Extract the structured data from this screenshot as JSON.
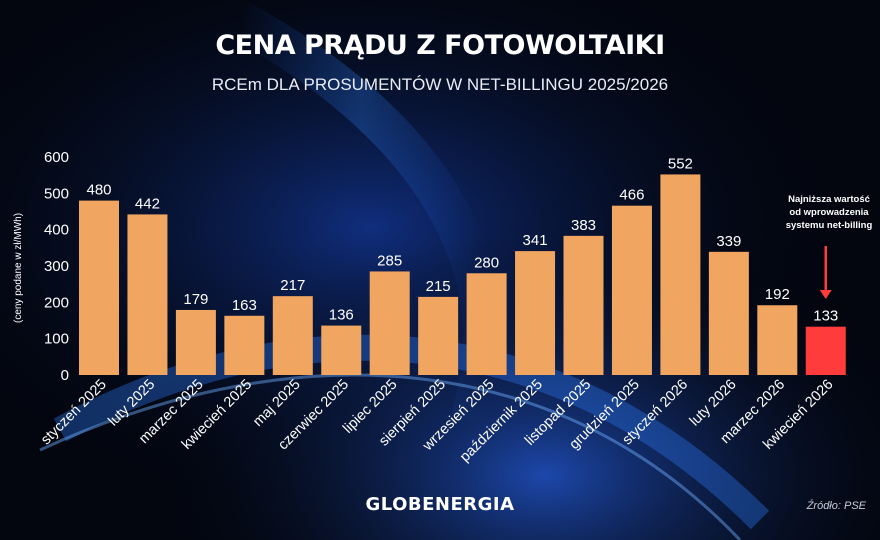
{
  "title": "CENA PRĄDU Z FOTOWOLTAIKI",
  "subtitle": "RCEm DLA PROSUMENTÓW W NET-BILLINGU 2025/2026",
  "brand": "GLOBENERGIA",
  "source": "Źródło: PSE",
  "colors": {
    "background": "#03060f",
    "bar": "#f0a560",
    "highlight_bar": "#ff3b3b",
    "text": "#ffffff"
  },
  "chart_data": {
    "type": "bar",
    "title": "CENA PRĄDU Z FOTOWOLTAIKI",
    "subtitle": "RCEm DLA PROSUMENTÓW W NET-BILLINGU 2025/2026",
    "xlabel": "",
    "ylabel": "(ceny podane w zł/MWh)",
    "ylim": [
      0,
      600
    ],
    "yticks": [
      0,
      100,
      200,
      300,
      400,
      500,
      600
    ],
    "grid": false,
    "categories": [
      "styczeń 2025",
      "luty 2025",
      "marzec 2025",
      "kwiecień 2025",
      "maj 2025",
      "czerwiec 2025",
      "lipiec 2025",
      "sierpień 2025",
      "wrzesień 2025",
      "październik 2025",
      "listopad 2025",
      "grudzień 2025",
      "styczeń 2026",
      "luty 2026",
      "marzec 2026",
      "kwiecień 2026"
    ],
    "values": [
      480,
      442,
      179,
      163,
      217,
      136,
      285,
      215,
      280,
      341,
      383,
      466,
      552,
      339,
      192,
      133
    ],
    "highlight_index": 15,
    "annotation": {
      "lines": [
        "Najniższa wartość",
        "od wprowadzenia",
        "systemu net-billing"
      ]
    }
  }
}
